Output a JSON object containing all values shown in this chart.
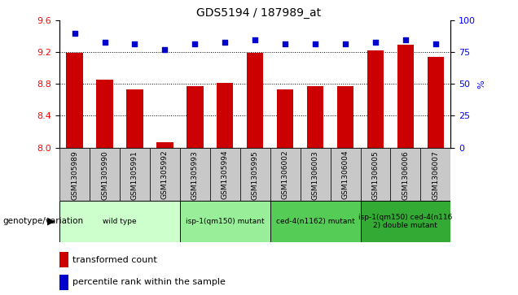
{
  "title": "GDS5194 / 187989_at",
  "samples": [
    "GSM1305989",
    "GSM1305990",
    "GSM1305991",
    "GSM1305992",
    "GSM1305993",
    "GSM1305994",
    "GSM1305995",
    "GSM1306002",
    "GSM1306003",
    "GSM1306004",
    "GSM1306005",
    "GSM1306006",
    "GSM1306007"
  ],
  "bar_values": [
    9.19,
    8.86,
    8.73,
    8.07,
    8.77,
    8.82,
    9.19,
    8.73,
    8.77,
    8.77,
    9.22,
    9.3,
    9.14
  ],
  "dot_values": [
    90,
    83,
    82,
    77,
    82,
    83,
    85,
    82,
    82,
    82,
    83,
    85,
    82
  ],
  "ylim": [
    8.0,
    9.6
  ],
  "yticks_left": [
    8.0,
    8.4,
    8.8,
    9.2,
    9.6
  ],
  "yticks_right": [
    0,
    25,
    50,
    75,
    100
  ],
  "bar_color": "#CC0000",
  "dot_color": "#0000CC",
  "groups": [
    {
      "label": "wild type",
      "start": 0,
      "end": 3,
      "color": "#ccffcc"
    },
    {
      "label": "isp-1(qm150) mutant",
      "start": 4,
      "end": 6,
      "color": "#99ee99"
    },
    {
      "label": "ced-4(n1162) mutant",
      "start": 7,
      "end": 9,
      "color": "#55cc55"
    },
    {
      "label": "isp-1(qm150) ced-4(n116\n2) double mutant",
      "start": 10,
      "end": 12,
      "color": "#33aa33"
    }
  ],
  "xlabel_genotype": "genotype/variation",
  "legend_bar_label": "transformed count",
  "legend_dot_label": "percentile rank within the sample",
  "bg_gray": "#c8c8c8"
}
